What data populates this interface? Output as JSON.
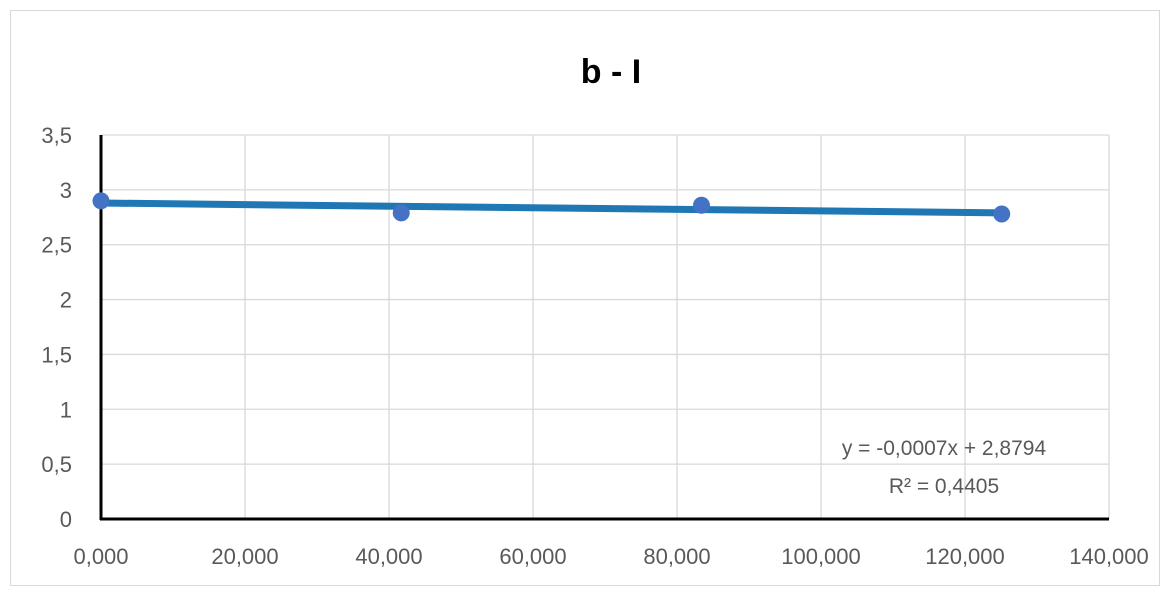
{
  "chart_data": {
    "type": "scatter",
    "title": "b - I",
    "xlabel": "",
    "ylabel": "",
    "xlim": [
      0,
      140000
    ],
    "ylim": [
      0,
      3.5
    ],
    "x_ticks": [
      "0,000",
      "20,000",
      "40,000",
      "60,000",
      "80,000",
      "100,000",
      "120,000",
      "140,000"
    ],
    "y_ticks": [
      "0",
      "0,5",
      "1",
      "1,5",
      "2",
      "2,5",
      "3",
      "3,5"
    ],
    "grid": true,
    "legend": "none",
    "series": [
      {
        "x": [
          0,
          41700,
          83400,
          125100
        ],
        "y": [
          2.9,
          2.79,
          2.86,
          2.78
        ],
        "marker_color": "#4472c4"
      }
    ],
    "trendline": {
      "equation": "y = -0,0007x + 2,8794",
      "r_squared": "R² = 0,4405",
      "x": [
        0,
        125100
      ],
      "y": [
        2.88,
        2.79
      ],
      "color": "#1f77b4"
    }
  }
}
